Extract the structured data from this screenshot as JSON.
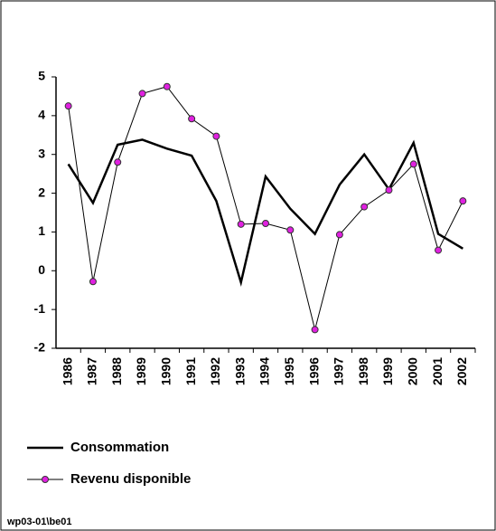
{
  "chart_data": {
    "type": "line",
    "categories": [
      "1986",
      "1987",
      "1988",
      "1989",
      "1990",
      "1991",
      "1992",
      "1993",
      "1994",
      "1995",
      "1996",
      "1997",
      "1998",
      "1999",
      "2000",
      "2001",
      "2002"
    ],
    "series": [
      {
        "name": "Consommation",
        "color": "#000000",
        "values": [
          2.75,
          1.75,
          3.25,
          3.38,
          3.15,
          2.97,
          1.8,
          -0.3,
          2.43,
          1.6,
          0.95,
          2.22,
          3.0,
          2.1,
          3.3,
          0.95,
          0.57
        ]
      },
      {
        "name": "Revenu disponible",
        "color": "#e020e0",
        "values": [
          4.25,
          -0.28,
          2.8,
          4.57,
          4.75,
          3.92,
          3.47,
          1.2,
          1.22,
          1.05,
          -1.52,
          0.93,
          1.65,
          2.08,
          2.75,
          0.53,
          1.8
        ]
      }
    ],
    "ylim": [
      -2,
      5
    ],
    "yticks": [
      -2,
      -1,
      0,
      1,
      2,
      3,
      4,
      5
    ],
    "footnote": "wp03-01\\be01"
  }
}
